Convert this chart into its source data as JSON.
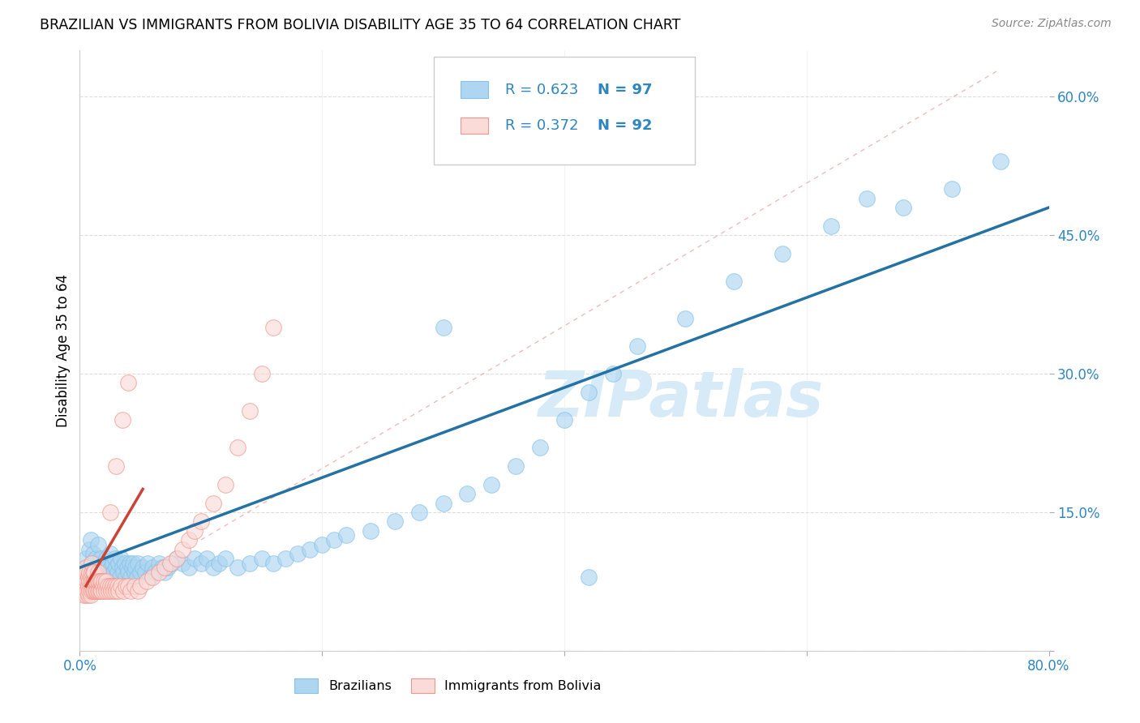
{
  "title": "BRAZILIAN VS IMMIGRANTS FROM BOLIVIA DISABILITY AGE 35 TO 64 CORRELATION CHART",
  "source": "Source: ZipAtlas.com",
  "ylabel": "Disability Age 35 to 64",
  "xlim": [
    0.0,
    0.8
  ],
  "ylim": [
    0.0,
    0.65
  ],
  "R_blue": 0.623,
  "N_blue": 97,
  "R_pink": 0.372,
  "N_pink": 92,
  "blue_color": "#85C1E9",
  "pink_color": "#F1948A",
  "blue_fill": "#AED6F1",
  "pink_fill": "#FADBD8",
  "blue_line_color": "#2471A3",
  "pink_line_color": "#CB4335",
  "diag_color": "#F1948A",
  "watermark": "ZIPatlas",
  "watermark_color": "#D6EAF8",
  "legend_label_blue": "Brazilians",
  "legend_label_pink": "Immigrants from Bolivia",
  "blue_x": [
    0.005,
    0.007,
    0.008,
    0.009,
    0.01,
    0.011,
    0.012,
    0.013,
    0.014,
    0.015,
    0.015,
    0.016,
    0.017,
    0.018,
    0.019,
    0.02,
    0.021,
    0.022,
    0.023,
    0.024,
    0.025,
    0.026,
    0.027,
    0.028,
    0.029,
    0.03,
    0.031,
    0.032,
    0.033,
    0.034,
    0.035,
    0.036,
    0.037,
    0.038,
    0.039,
    0.04,
    0.041,
    0.042,
    0.043,
    0.044,
    0.045,
    0.046,
    0.047,
    0.048,
    0.05,
    0.052,
    0.054,
    0.056,
    0.058,
    0.06,
    0.062,
    0.065,
    0.068,
    0.07,
    0.073,
    0.076,
    0.08,
    0.085,
    0.09,
    0.095,
    0.1,
    0.105,
    0.11,
    0.115,
    0.12,
    0.13,
    0.14,
    0.15,
    0.16,
    0.17,
    0.18,
    0.19,
    0.2,
    0.21,
    0.22,
    0.24,
    0.26,
    0.28,
    0.3,
    0.32,
    0.34,
    0.36,
    0.38,
    0.4,
    0.42,
    0.44,
    0.46,
    0.5,
    0.54,
    0.58,
    0.62,
    0.65,
    0.68,
    0.72,
    0.76,
    0.42,
    0.3
  ],
  "blue_y": [
    0.1,
    0.09,
    0.11,
    0.12,
    0.095,
    0.105,
    0.085,
    0.1,
    0.09,
    0.115,
    0.08,
    0.095,
    0.1,
    0.085,
    0.09,
    0.095,
    0.085,
    0.1,
    0.09,
    0.08,
    0.105,
    0.09,
    0.095,
    0.085,
    0.1,
    0.09,
    0.085,
    0.095,
    0.08,
    0.1,
    0.09,
    0.085,
    0.095,
    0.08,
    0.09,
    0.085,
    0.095,
    0.08,
    0.09,
    0.095,
    0.085,
    0.09,
    0.08,
    0.095,
    0.085,
    0.09,
    0.085,
    0.095,
    0.08,
    0.09,
    0.085,
    0.095,
    0.09,
    0.085,
    0.09,
    0.095,
    0.1,
    0.095,
    0.09,
    0.1,
    0.095,
    0.1,
    0.09,
    0.095,
    0.1,
    0.09,
    0.095,
    0.1,
    0.095,
    0.1,
    0.105,
    0.11,
    0.115,
    0.12,
    0.125,
    0.13,
    0.14,
    0.15,
    0.16,
    0.17,
    0.18,
    0.2,
    0.22,
    0.25,
    0.28,
    0.3,
    0.33,
    0.36,
    0.4,
    0.43,
    0.46,
    0.49,
    0.48,
    0.5,
    0.53,
    0.08,
    0.35
  ],
  "pink_x": [
    0.001,
    0.002,
    0.002,
    0.003,
    0.003,
    0.003,
    0.004,
    0.004,
    0.004,
    0.005,
    0.005,
    0.005,
    0.005,
    0.006,
    0.006,
    0.006,
    0.007,
    0.007,
    0.007,
    0.008,
    0.008,
    0.008,
    0.009,
    0.009,
    0.009,
    0.01,
    0.01,
    0.01,
    0.01,
    0.011,
    0.011,
    0.011,
    0.012,
    0.012,
    0.012,
    0.013,
    0.013,
    0.014,
    0.014,
    0.015,
    0.015,
    0.015,
    0.016,
    0.016,
    0.017,
    0.017,
    0.018,
    0.018,
    0.019,
    0.02,
    0.02,
    0.021,
    0.022,
    0.022,
    0.023,
    0.024,
    0.025,
    0.026,
    0.027,
    0.028,
    0.029,
    0.03,
    0.031,
    0.032,
    0.034,
    0.036,
    0.038,
    0.04,
    0.042,
    0.045,
    0.048,
    0.05,
    0.055,
    0.06,
    0.065,
    0.07,
    0.075,
    0.08,
    0.085,
    0.09,
    0.095,
    0.1,
    0.11,
    0.12,
    0.13,
    0.14,
    0.15,
    0.16,
    0.025,
    0.03,
    0.035,
    0.04
  ],
  "pink_y": [
    0.07,
    0.065,
    0.075,
    0.06,
    0.07,
    0.08,
    0.065,
    0.075,
    0.085,
    0.06,
    0.07,
    0.08,
    0.09,
    0.065,
    0.075,
    0.085,
    0.06,
    0.07,
    0.08,
    0.065,
    0.075,
    0.085,
    0.06,
    0.07,
    0.08,
    0.065,
    0.075,
    0.085,
    0.095,
    0.065,
    0.075,
    0.085,
    0.065,
    0.075,
    0.085,
    0.065,
    0.075,
    0.065,
    0.075,
    0.065,
    0.075,
    0.085,
    0.065,
    0.075,
    0.065,
    0.075,
    0.065,
    0.075,
    0.07,
    0.065,
    0.075,
    0.07,
    0.065,
    0.075,
    0.07,
    0.065,
    0.07,
    0.065,
    0.07,
    0.065,
    0.07,
    0.065,
    0.07,
    0.065,
    0.07,
    0.065,
    0.07,
    0.07,
    0.065,
    0.07,
    0.065,
    0.07,
    0.075,
    0.08,
    0.085,
    0.09,
    0.095,
    0.1,
    0.11,
    0.12,
    0.13,
    0.14,
    0.16,
    0.18,
    0.22,
    0.26,
    0.3,
    0.35,
    0.15,
    0.2,
    0.25,
    0.29
  ]
}
